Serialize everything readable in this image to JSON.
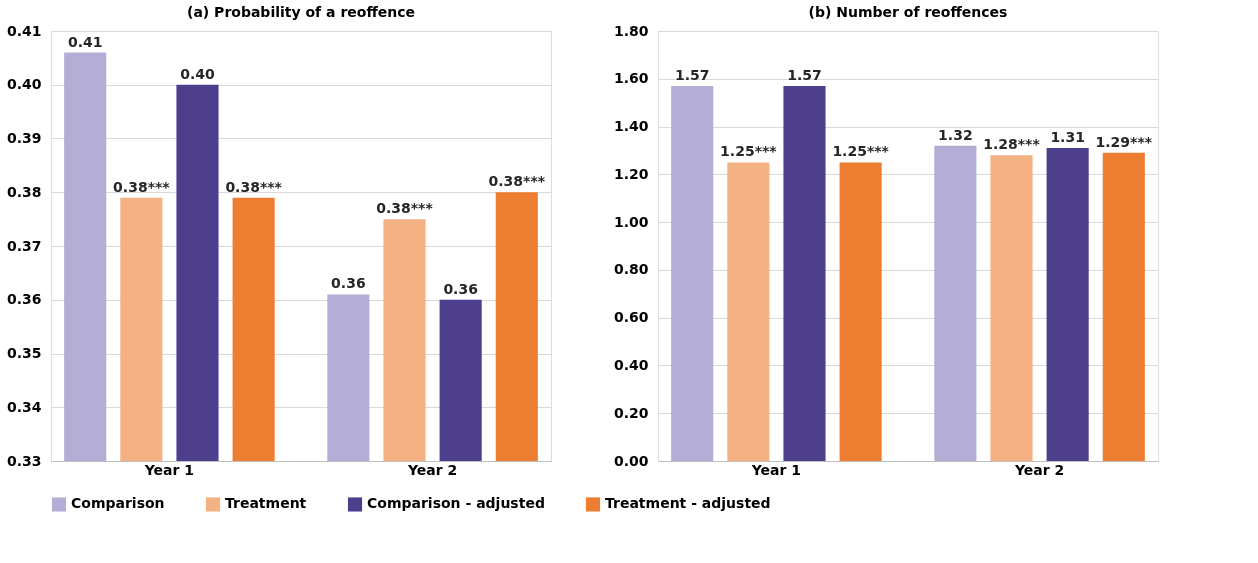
{
  "chart_data": [
    {
      "type": "bar",
      "title": "(a) Probability of a reoffence",
      "categories": [
        "Year 1",
        "Year 2"
      ],
      "ylim": [
        0.33,
        0.41
      ],
      "yticks": [
        {
          "value": 0.33,
          "label": "0.33"
        },
        {
          "value": 0.34,
          "label": "0.34"
        },
        {
          "value": 0.35,
          "label": "0.35"
        },
        {
          "value": 0.36,
          "label": "0.36"
        },
        {
          "value": 0.37,
          "label": "0.37"
        },
        {
          "value": 0.38,
          "label": "0.38"
        },
        {
          "value": 0.39,
          "label": "0.39"
        },
        {
          "value": 0.4,
          "label": "0.40"
        },
        {
          "value": 0.41,
          "label": "0.41"
        }
      ],
      "grid": "y",
      "legend": "bottom",
      "series": [
        {
          "name": "Comparison",
          "color": "#b4aed6",
          "values": [
            0.406,
            0.361
          ],
          "value_labels": [
            "0.41",
            "0.36"
          ]
        },
        {
          "name": "Treatment",
          "color": "#f4b183",
          "values": [
            0.379,
            0.375
          ],
          "value_labels": [
            "0.38***",
            "0.38***"
          ]
        },
        {
          "name": "Comparison - adjusted",
          "color": "#4e3f8c",
          "values": [
            0.4,
            0.36
          ],
          "value_labels": [
            "0.40",
            "0.36"
          ]
        },
        {
          "name": "Treatment - adjusted",
          "color": "#ed7d31",
          "values": [
            0.379,
            0.38
          ],
          "value_labels": [
            "0.38***",
            "0.38***"
          ]
        }
      ]
    },
    {
      "type": "bar",
      "title": "(b) Number of reoffences",
      "categories": [
        "Year 1",
        "Year 2"
      ],
      "ylim": [
        0,
        1.8
      ],
      "yticks": [
        {
          "value": 0,
          "label": "0.00"
        },
        {
          "value": 0.2,
          "label": "0.20"
        },
        {
          "value": 0.4,
          "label": "0.40"
        },
        {
          "value": 0.6,
          "label": "0.60"
        },
        {
          "value": 0.8,
          "label": "0.80"
        },
        {
          "value": 1.0,
          "label": "1.00"
        },
        {
          "value": 1.2,
          "label": "1.20"
        },
        {
          "value": 1.4,
          "label": "1.40"
        },
        {
          "value": 1.6,
          "label": "1.60"
        },
        {
          "value": 1.8,
          "label": "1.80"
        }
      ],
      "grid": "y",
      "series": [
        {
          "name": "Comparison",
          "color": "#b4aed6",
          "values": [
            1.57,
            1.32
          ],
          "value_labels": [
            "1.57",
            "1.32"
          ]
        },
        {
          "name": "Treatment",
          "color": "#f4b183",
          "values": [
            1.25,
            1.28
          ],
          "value_labels": [
            "1.25***",
            "1.28***"
          ]
        },
        {
          "name": "Comparison - adjusted",
          "color": "#4e3f8c",
          "values": [
            1.57,
            1.31
          ],
          "value_labels": [
            "1.57",
            "1.31"
          ]
        },
        {
          "name": "Treatment - adjusted",
          "color": "#ed7d31",
          "values": [
            1.25,
            1.29
          ],
          "value_labels": [
            "1.25***",
            "1.29***"
          ]
        }
      ]
    }
  ]
}
